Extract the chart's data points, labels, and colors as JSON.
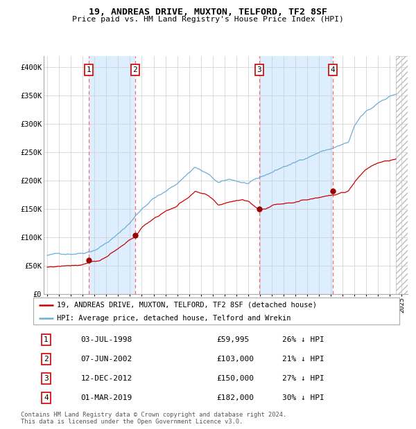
{
  "title": "19, ANDREAS DRIVE, MUXTON, TELFORD, TF2 8SF",
  "subtitle": "Price paid vs. HM Land Registry's House Price Index (HPI)",
  "transactions": [
    {
      "num": 1,
      "date": "1998-07-03",
      "price": 59995,
      "pct": 26,
      "x": 1998.51
    },
    {
      "num": 2,
      "date": "2002-06-07",
      "price": 103000,
      "pct": 21,
      "x": 2002.44
    },
    {
      "num": 3,
      "date": "2012-12-12",
      "price": 150000,
      "pct": 27,
      "x": 2012.95
    },
    {
      "num": 4,
      "date": "2019-03-01",
      "price": 182000,
      "pct": 30,
      "x": 2019.17
    }
  ],
  "legend_line1": "19, ANDREAS DRIVE, MUXTON, TELFORD, TF2 8SF (detached house)",
  "legend_line2": "HPI: Average price, detached house, Telford and Wrekin",
  "footnote1": "Contains HM Land Registry data © Crown copyright and database right 2024.",
  "footnote2": "This data is licensed under the Open Government Licence v3.0.",
  "hpi_color": "#6baed6",
  "price_color": "#cc0000",
  "point_color": "#990000",
  "shade_color": "#ddeeff",
  "grid_color": "#cccccc",
  "dashed_color": "#ff6666",
  "ylim": [
    0,
    420000
  ],
  "xlim_start": 1994.7,
  "xlim_end": 2025.5,
  "hatch_start": 2024.5,
  "row_labels": [
    "03-JUL-1998",
    "07-JUN-2002",
    "12-DEC-2012",
    "01-MAR-2019"
  ],
  "row_prices": [
    "£59,995",
    "£103,000",
    "£150,000",
    "£182,000"
  ],
  "row_pcts": [
    "26% ↓ HPI",
    "21% ↓ HPI",
    "27% ↓ HPI",
    "30% ↓ HPI"
  ]
}
